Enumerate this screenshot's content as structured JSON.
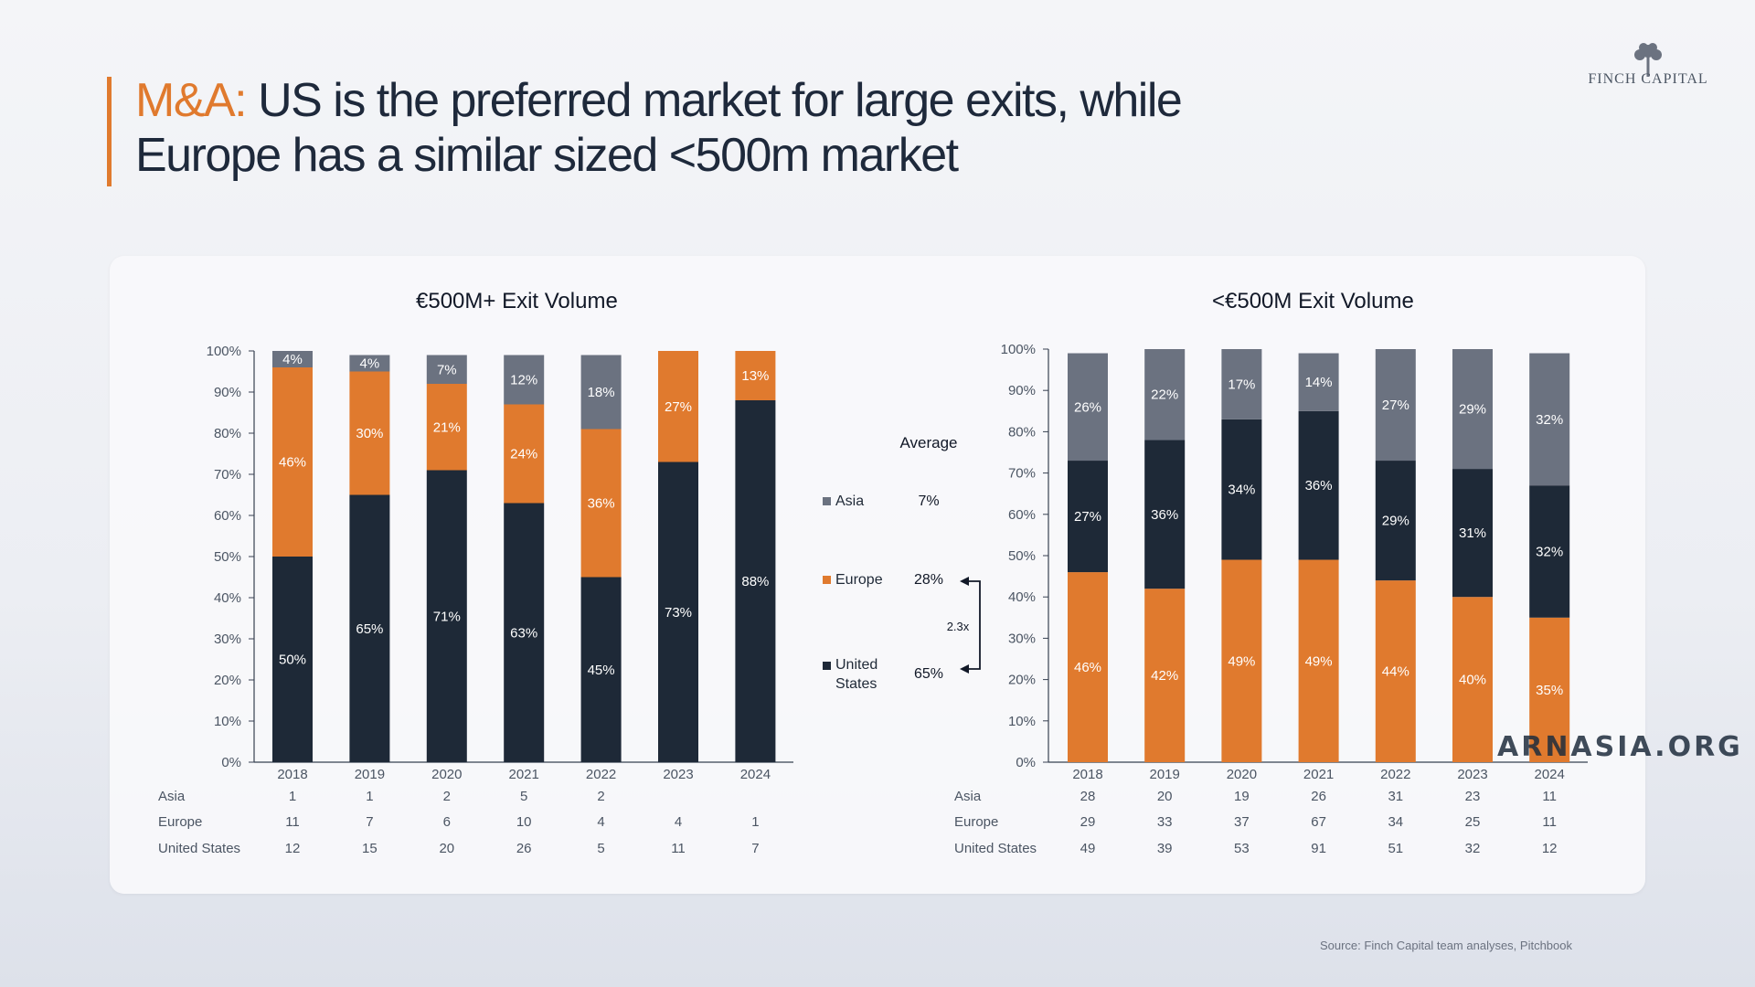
{
  "header": {
    "title_highlight": "M&A:",
    "title_line1": " US is the preferred market for large exits, while",
    "title_line2": "Europe has a similar sized <500m market"
  },
  "logo": {
    "text": "FINCH CAPITAL"
  },
  "source": "Source: Finch Capital team analyses, Pitchbook",
  "watermark": "ARNASIA.ORG",
  "colors": {
    "asia": "#6b7280",
    "europe": "#e07a2e",
    "us": "#1e2937",
    "accent": "#e07a2e"
  },
  "legend": {
    "average_label": "Average",
    "items": [
      {
        "name": "Asia",
        "avg": "7%"
      },
      {
        "name": "Europe",
        "avg": "28%"
      },
      {
        "name": "United States",
        "avg": "65%"
      }
    ],
    "ratio_label": "2.3x"
  },
  "chart_data": [
    {
      "type": "bar",
      "stacked": true,
      "title": "€500M+ Exit Volume",
      "categories": [
        "2018",
        "2019",
        "2020",
        "2021",
        "2022",
        "2023",
        "2024"
      ],
      "ylim": [
        0,
        100
      ],
      "yticks": [
        "0%",
        "10%",
        "20%",
        "30%",
        "40%",
        "50%",
        "60%",
        "70%",
        "80%",
        "90%",
        "100%"
      ],
      "series": [
        {
          "name": "United States",
          "color": "#1e2937",
          "values": [
            50,
            65,
            71,
            63,
            45,
            73,
            88
          ],
          "labels": [
            "50%",
            "65%",
            "71%",
            "63%",
            "45%",
            "73%",
            "88%"
          ]
        },
        {
          "name": "Europe",
          "color": "#e07a2e",
          "values": [
            46,
            30,
            21,
            24,
            36,
            27,
            13
          ],
          "labels": [
            "46%",
            "30%",
            "21%",
            "24%",
            "36%",
            "27%",
            "13%"
          ]
        },
        {
          "name": "Asia",
          "color": "#6b7280",
          "values": [
            4,
            4,
            7,
            12,
            18,
            0,
            0
          ],
          "labels": [
            "4%",
            "4%",
            "7%",
            "12%",
            "18%",
            "",
            ""
          ]
        }
      ],
      "table": {
        "rows": [
          {
            "label": "Asia",
            "values": [
              "1",
              "1",
              "2",
              "5",
              "2",
              "",
              ""
            ]
          },
          {
            "label": "Europe",
            "values": [
              "11",
              "7",
              "6",
              "10",
              "4",
              "4",
              "1"
            ]
          },
          {
            "label": "United States",
            "values": [
              "12",
              "15",
              "20",
              "26",
              "5",
              "11",
              "7"
            ]
          }
        ]
      }
    },
    {
      "type": "bar",
      "stacked": true,
      "title": "<€500M Exit Volume",
      "categories": [
        "2018",
        "2019",
        "2020",
        "2021",
        "2022",
        "2023",
        "2024"
      ],
      "ylim": [
        0,
        100
      ],
      "yticks": [
        "0%",
        "10%",
        "20%",
        "30%",
        "40%",
        "50%",
        "60%",
        "70%",
        "80%",
        "90%",
        "100%"
      ],
      "series": [
        {
          "name": "Europe",
          "color": "#e07a2e",
          "values": [
            46,
            42,
            49,
            49,
            44,
            40,
            35
          ],
          "labels": [
            "46%",
            "42%",
            "49%",
            "49%",
            "44%",
            "40%",
            "35%"
          ]
        },
        {
          "name": "United States",
          "color": "#1e2937",
          "values": [
            27,
            36,
            34,
            36,
            29,
            31,
            32
          ],
          "labels": [
            "27%",
            "36%",
            "34%",
            "36%",
            "29%",
            "31%",
            "32%"
          ]
        },
        {
          "name": "Asia",
          "color": "#6b7280",
          "values": [
            26,
            22,
            17,
            14,
            27,
            29,
            32
          ],
          "labels": [
            "26%",
            "22%",
            "17%",
            "14%",
            "27%",
            "29%",
            "32%"
          ]
        }
      ],
      "table": {
        "rows": [
          {
            "label": "Asia",
            "values": [
              "28",
              "20",
              "19",
              "26",
              "31",
              "23",
              "11"
            ]
          },
          {
            "label": "Europe",
            "values": [
              "29",
              "33",
              "37",
              "67",
              "34",
              "25",
              "11"
            ]
          },
          {
            "label": "United States",
            "values": [
              "49",
              "39",
              "53",
              "91",
              "51",
              "32",
              "12"
            ]
          }
        ]
      }
    }
  ]
}
